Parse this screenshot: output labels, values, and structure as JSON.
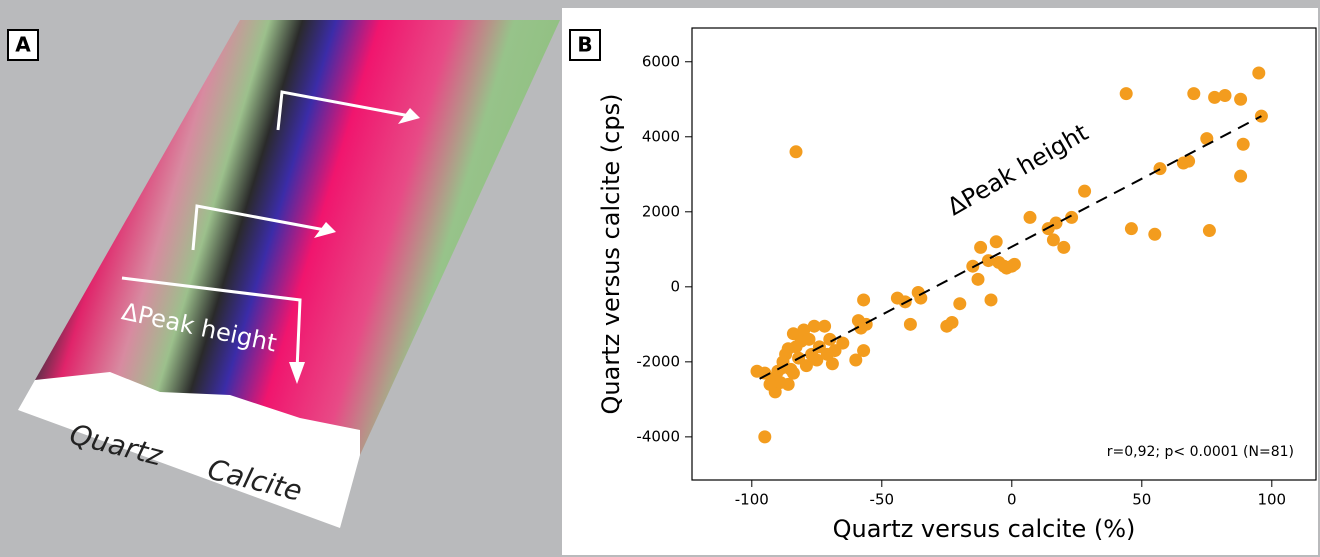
{
  "panel_a": {
    "label": "A",
    "annotation": "ΔPeak height",
    "peak_labels": [
      "Quartz",
      "Calcite"
    ]
  },
  "chart_data": {
    "type": "scatter",
    "panel_label": "B",
    "x_label": "Quartz versus calcite (%)",
    "y_label": "Quartz versus calcite (cps)",
    "annotation": "ΔPeak height",
    "stats": "r=0,92; p< 0.0001 (N=81)",
    "color": "#f39c1e",
    "xlim": [
      -123,
      117
    ],
    "ylim": [
      -5150,
      6900
    ],
    "xticks": [
      -100,
      -50,
      0,
      50,
      100
    ],
    "yticks": [
      -4000,
      -2000,
      0,
      2000,
      4000,
      6000
    ],
    "trend_line": {
      "x": [
        -97,
        96
      ],
      "y": [
        -2450,
        4550
      ]
    },
    "x": [
      -98,
      -95,
      -83,
      -92,
      -91,
      -89,
      -88,
      -87,
      -86,
      -85,
      -84,
      -83,
      -82,
      -81,
      -80,
      -78,
      -77,
      -76,
      -74,
      -72,
      -70,
      -69,
      -68,
      -60,
      -59,
      -58,
      -57,
      -57,
      -56,
      -44,
      -41,
      -39,
      -36,
      -35,
      -25,
      -23,
      -20,
      -15,
      -13,
      -12,
      -8,
      -6,
      -5,
      -3,
      0,
      1,
      7,
      16,
      17,
      20,
      23,
      28,
      44,
      46,
      55,
      57,
      66,
      68,
      70,
      75,
      76,
      78,
      82,
      88,
      88,
      89,
      95,
      96,
      -95,
      -90,
      -86,
      -79,
      -75,
      -65,
      -9,
      -2,
      14,
      -88,
      -93,
      -71,
      -84
    ],
    "y": [
      -2250,
      -4000,
      3600,
      -2450,
      -2800,
      -2550,
      -2150,
      -1800,
      -2600,
      -2200,
      -1250,
      -1600,
      -1900,
      -1450,
      -1150,
      -1400,
      -1800,
      -1050,
      -1600,
      -1050,
      -1400,
      -2050,
      -1700,
      -1950,
      -900,
      -1100,
      -350,
      -1700,
      -1000,
      -300,
      -400,
      -1000,
      -150,
      -300,
      -1050,
      -950,
      -450,
      550,
      200,
      1050,
      -350,
      1200,
      650,
      550,
      550,
      600,
      1850,
      1250,
      1700,
      1050,
      1850,
      2550,
      5150,
      1550,
      1400,
      3150,
      3300,
      3350,
      5150,
      3950,
      1500,
      5050,
      5100,
      5000,
      2950,
      3800,
      5700,
      4550,
      -2300,
      -2250,
      -1650,
      -2100,
      -1950,
      -1500,
      700,
      500,
      1550,
      -2000,
      -2600,
      -1800,
      -2300
    ]
  }
}
